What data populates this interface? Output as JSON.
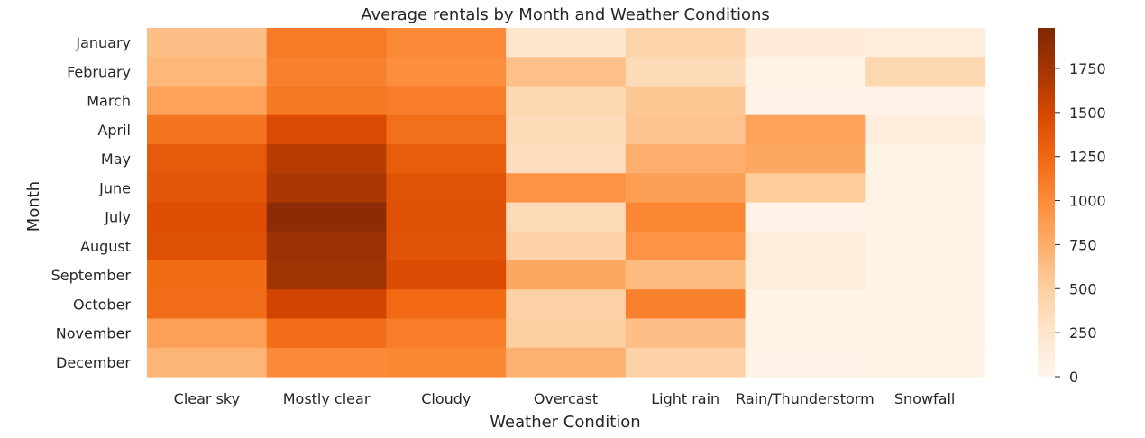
{
  "chart_data": {
    "type": "heatmap",
    "title": "Average rentals by Month and Weather Conditions",
    "xlabel": "Weather Condition",
    "ylabel": "Month",
    "x_categories": [
      "Clear sky",
      "Mostly clear",
      "Cloudy",
      "Overcast",
      "Light rain",
      "Rain/Thunderstorm",
      "Snowfall"
    ],
    "y_categories": [
      "January",
      "February",
      "March",
      "April",
      "May",
      "June",
      "July",
      "August",
      "September",
      "October",
      "November",
      "December"
    ],
    "values": [
      [
        620,
        1120,
        1020,
        250,
        450,
        150,
        110
      ],
      [
        680,
        1080,
        980,
        610,
        370,
        40,
        420
      ],
      [
        830,
        1130,
        1100,
        410,
        560,
        30,
        30
      ],
      [
        1170,
        1470,
        1190,
        370,
        580,
        830,
        110
      ],
      [
        1350,
        1650,
        1330,
        350,
        740,
        790,
        40
      ],
      [
        1380,
        1720,
        1410,
        940,
        860,
        520,
        40
      ],
      [
        1440,
        1900,
        1420,
        380,
        1030,
        30,
        40
      ],
      [
        1420,
        1800,
        1400,
        470,
        940,
        140,
        40
      ],
      [
        1220,
        1780,
        1460,
        790,
        650,
        140,
        40
      ],
      [
        1210,
        1520,
        1240,
        480,
        1080,
        40,
        40
      ],
      [
        850,
        1210,
        1100,
        510,
        620,
        40,
        60
      ],
      [
        690,
        1020,
        1030,
        720,
        470,
        30,
        40
      ]
    ],
    "colorbar": {
      "min": 0,
      "max": 1980,
      "ticks": [
        0,
        250,
        500,
        750,
        1000,
        1250,
        1500,
        1750
      ],
      "colormap": "Oranges",
      "color_stops": [
        "#fff5eb",
        "#fee6ce",
        "#fdd0a2",
        "#fdae6b",
        "#fd8d3c",
        "#f16913",
        "#d94801",
        "#a63603",
        "#7f2704"
      ]
    }
  }
}
